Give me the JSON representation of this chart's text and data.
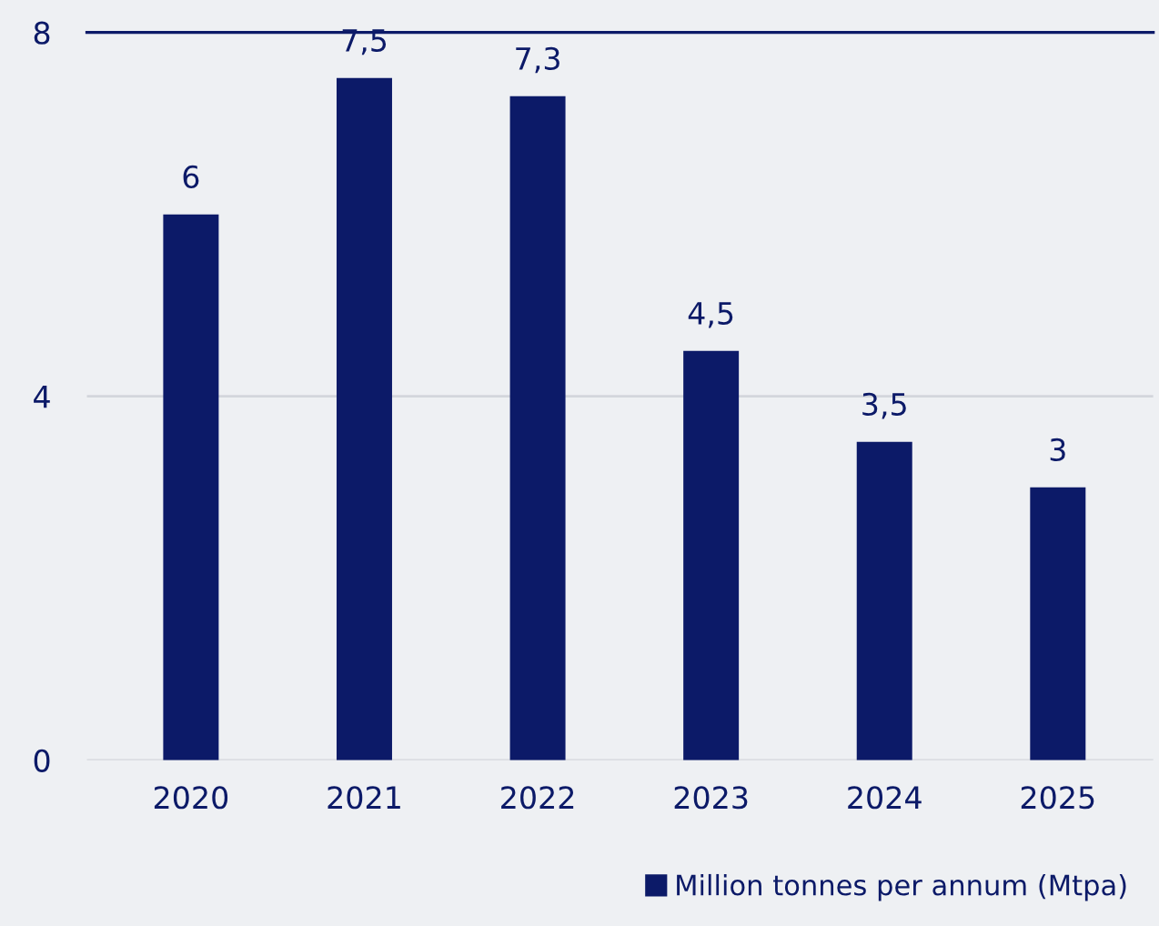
{
  "chart_data": {
    "type": "bar",
    "categories": [
      "2020",
      "2021",
      "2022",
      "2023",
      "2024",
      "2025"
    ],
    "series": [
      {
        "name": "Million tonnes per annum (Mtpa)",
        "color": "#0c1a68",
        "values": [
          6,
          7.5,
          7.3,
          4.5,
          3.5,
          3
        ],
        "value_labels": [
          "6",
          "7,5",
          "7,3",
          "4,5",
          "3,5",
          "3"
        ]
      }
    ],
    "ylim": [
      0,
      8
    ],
    "yticks": [
      0,
      4,
      8
    ],
    "grid": "y",
    "legend": "bottom right"
  }
}
